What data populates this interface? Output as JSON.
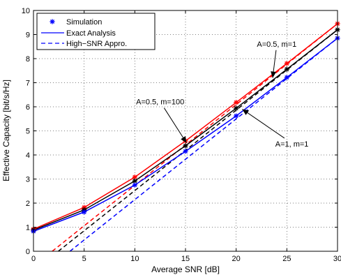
{
  "chart_data": {
    "type": "line",
    "title": "",
    "xlabel": "Average SNR [dB]",
    "ylabel": "Effective Capacity [bit/s/Hz]",
    "xlim": [
      0,
      30
    ],
    "ylim": [
      0,
      10
    ],
    "x_ticks": [
      0,
      5,
      10,
      15,
      20,
      25,
      30
    ],
    "y_ticks": [
      0,
      1,
      2,
      3,
      4,
      5,
      6,
      7,
      8,
      9,
      10
    ],
    "grid": "dotted",
    "legend": {
      "placement": "top-left",
      "entries": [
        {
          "label": "Simulation",
          "style": "marker",
          "color": "#0000ff"
        },
        {
          "label": "Exact Analysis",
          "style": "solid",
          "color": "#0000ff"
        },
        {
          "label": "High−SNR Appro.",
          "style": "dashed",
          "color": "#0000ff"
        }
      ]
    },
    "series": [
      {
        "color": "#ff0000",
        "kind": "exact",
        "x": [
          0,
          5,
          10,
          15,
          20,
          25,
          30
        ],
        "y": [
          0.92,
          1.82,
          3.08,
          4.58,
          6.18,
          7.8,
          9.45
        ]
      },
      {
        "color": "#000000",
        "kind": "exact",
        "x": [
          0,
          5,
          10,
          15,
          20,
          25,
          30
        ],
        "y": [
          0.88,
          1.72,
          2.92,
          4.38,
          5.94,
          7.56,
          9.2
        ]
      },
      {
        "color": "#0000ff",
        "kind": "exact",
        "x": [
          0,
          5,
          10,
          15,
          20,
          25,
          30
        ],
        "y": [
          0.83,
          1.63,
          2.75,
          4.15,
          5.62,
          7.22,
          8.85
        ]
      },
      {
        "color": "#ff0000",
        "kind": "simulation",
        "x": [
          0,
          5,
          10,
          15,
          20,
          25,
          30
        ],
        "y": [
          0.92,
          1.82,
          3.08,
          4.58,
          6.18,
          7.8,
          9.45
        ]
      },
      {
        "color": "#000000",
        "kind": "simulation",
        "x": [
          0,
          5,
          10,
          15,
          20,
          25,
          30
        ],
        "y": [
          0.88,
          1.72,
          2.92,
          4.38,
          5.94,
          7.56,
          9.2
        ]
      },
      {
        "color": "#0000ff",
        "kind": "simulation",
        "x": [
          0,
          5,
          10,
          15,
          20,
          25,
          30
        ],
        "y": [
          0.83,
          1.63,
          2.75,
          4.15,
          5.62,
          7.22,
          8.85
        ]
      },
      {
        "color": "#ff0000",
        "kind": "high_snr",
        "x": [
          1.85,
          30
        ],
        "y": [
          0,
          9.45
        ]
      },
      {
        "color": "#000000",
        "kind": "high_snr",
        "x": [
          2.45,
          30
        ],
        "y": [
          0,
          9.2
        ]
      },
      {
        "color": "#0000ff",
        "kind": "high_snr",
        "x": [
          3.6,
          30
        ],
        "y": [
          0,
          8.85
        ]
      }
    ],
    "annotations": [
      {
        "text": "A=0.5, m=1",
        "text_x": 24,
        "text_y": 8.5,
        "arrow_to": [
          23.6,
          7.2
        ]
      },
      {
        "text": "A=0.5, m=100",
        "text_x": 12.5,
        "text_y": 6.1,
        "arrow_to": [
          15.1,
          4.5
        ]
      },
      {
        "text": "A=1, m=1",
        "text_x": 25.5,
        "text_y": 4.35,
        "arrow_to": [
          20.6,
          5.9
        ]
      }
    ]
  }
}
